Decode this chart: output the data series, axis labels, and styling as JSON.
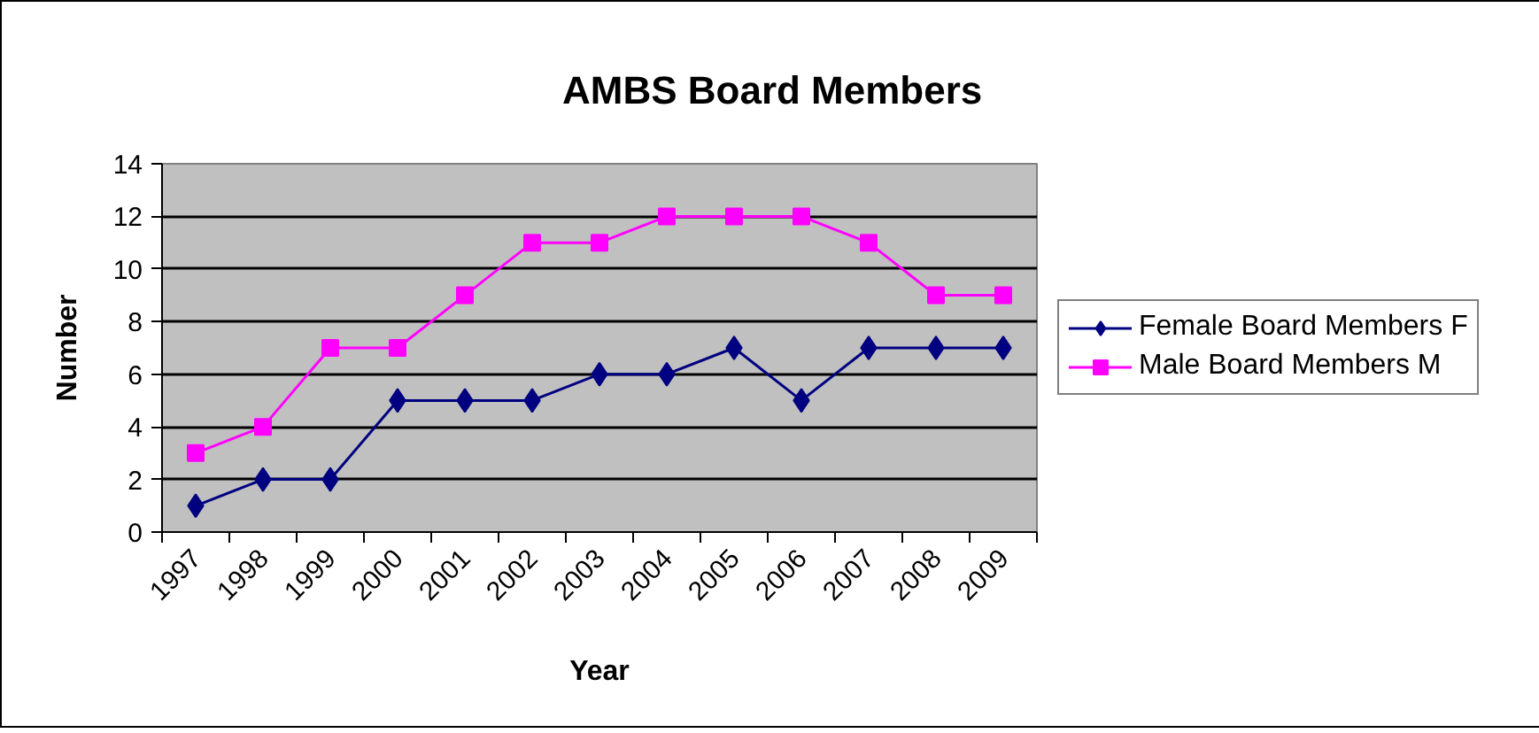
{
  "chart_data": {
    "type": "line",
    "title": "AMBS Board Members",
    "xlabel": "Year",
    "ylabel": "Number",
    "categories": [
      "1997",
      "1998",
      "1999",
      "2000",
      "2001",
      "2002",
      "2003",
      "2004",
      "2005",
      "2006",
      "2007",
      "2008",
      "2009"
    ],
    "series": [
      {
        "name": "Female Board Members F",
        "color": "#000080",
        "marker": "diamond",
        "values": [
          1,
          2,
          2,
          5,
          5,
          5,
          6,
          6,
          7,
          5,
          7,
          7,
          7
        ]
      },
      {
        "name": "Male Board Members M",
        "color": "#ff00ff",
        "marker": "square",
        "values": [
          3,
          4,
          7,
          7,
          9,
          11,
          11,
          12,
          12,
          12,
          11,
          9,
          9
        ]
      }
    ],
    "ylim": [
      0,
      14
    ],
    "yticks": [
      0,
      2,
      4,
      6,
      8,
      10,
      12,
      14
    ],
    "grid": "y",
    "legend": "right",
    "line_style": "solid"
  }
}
